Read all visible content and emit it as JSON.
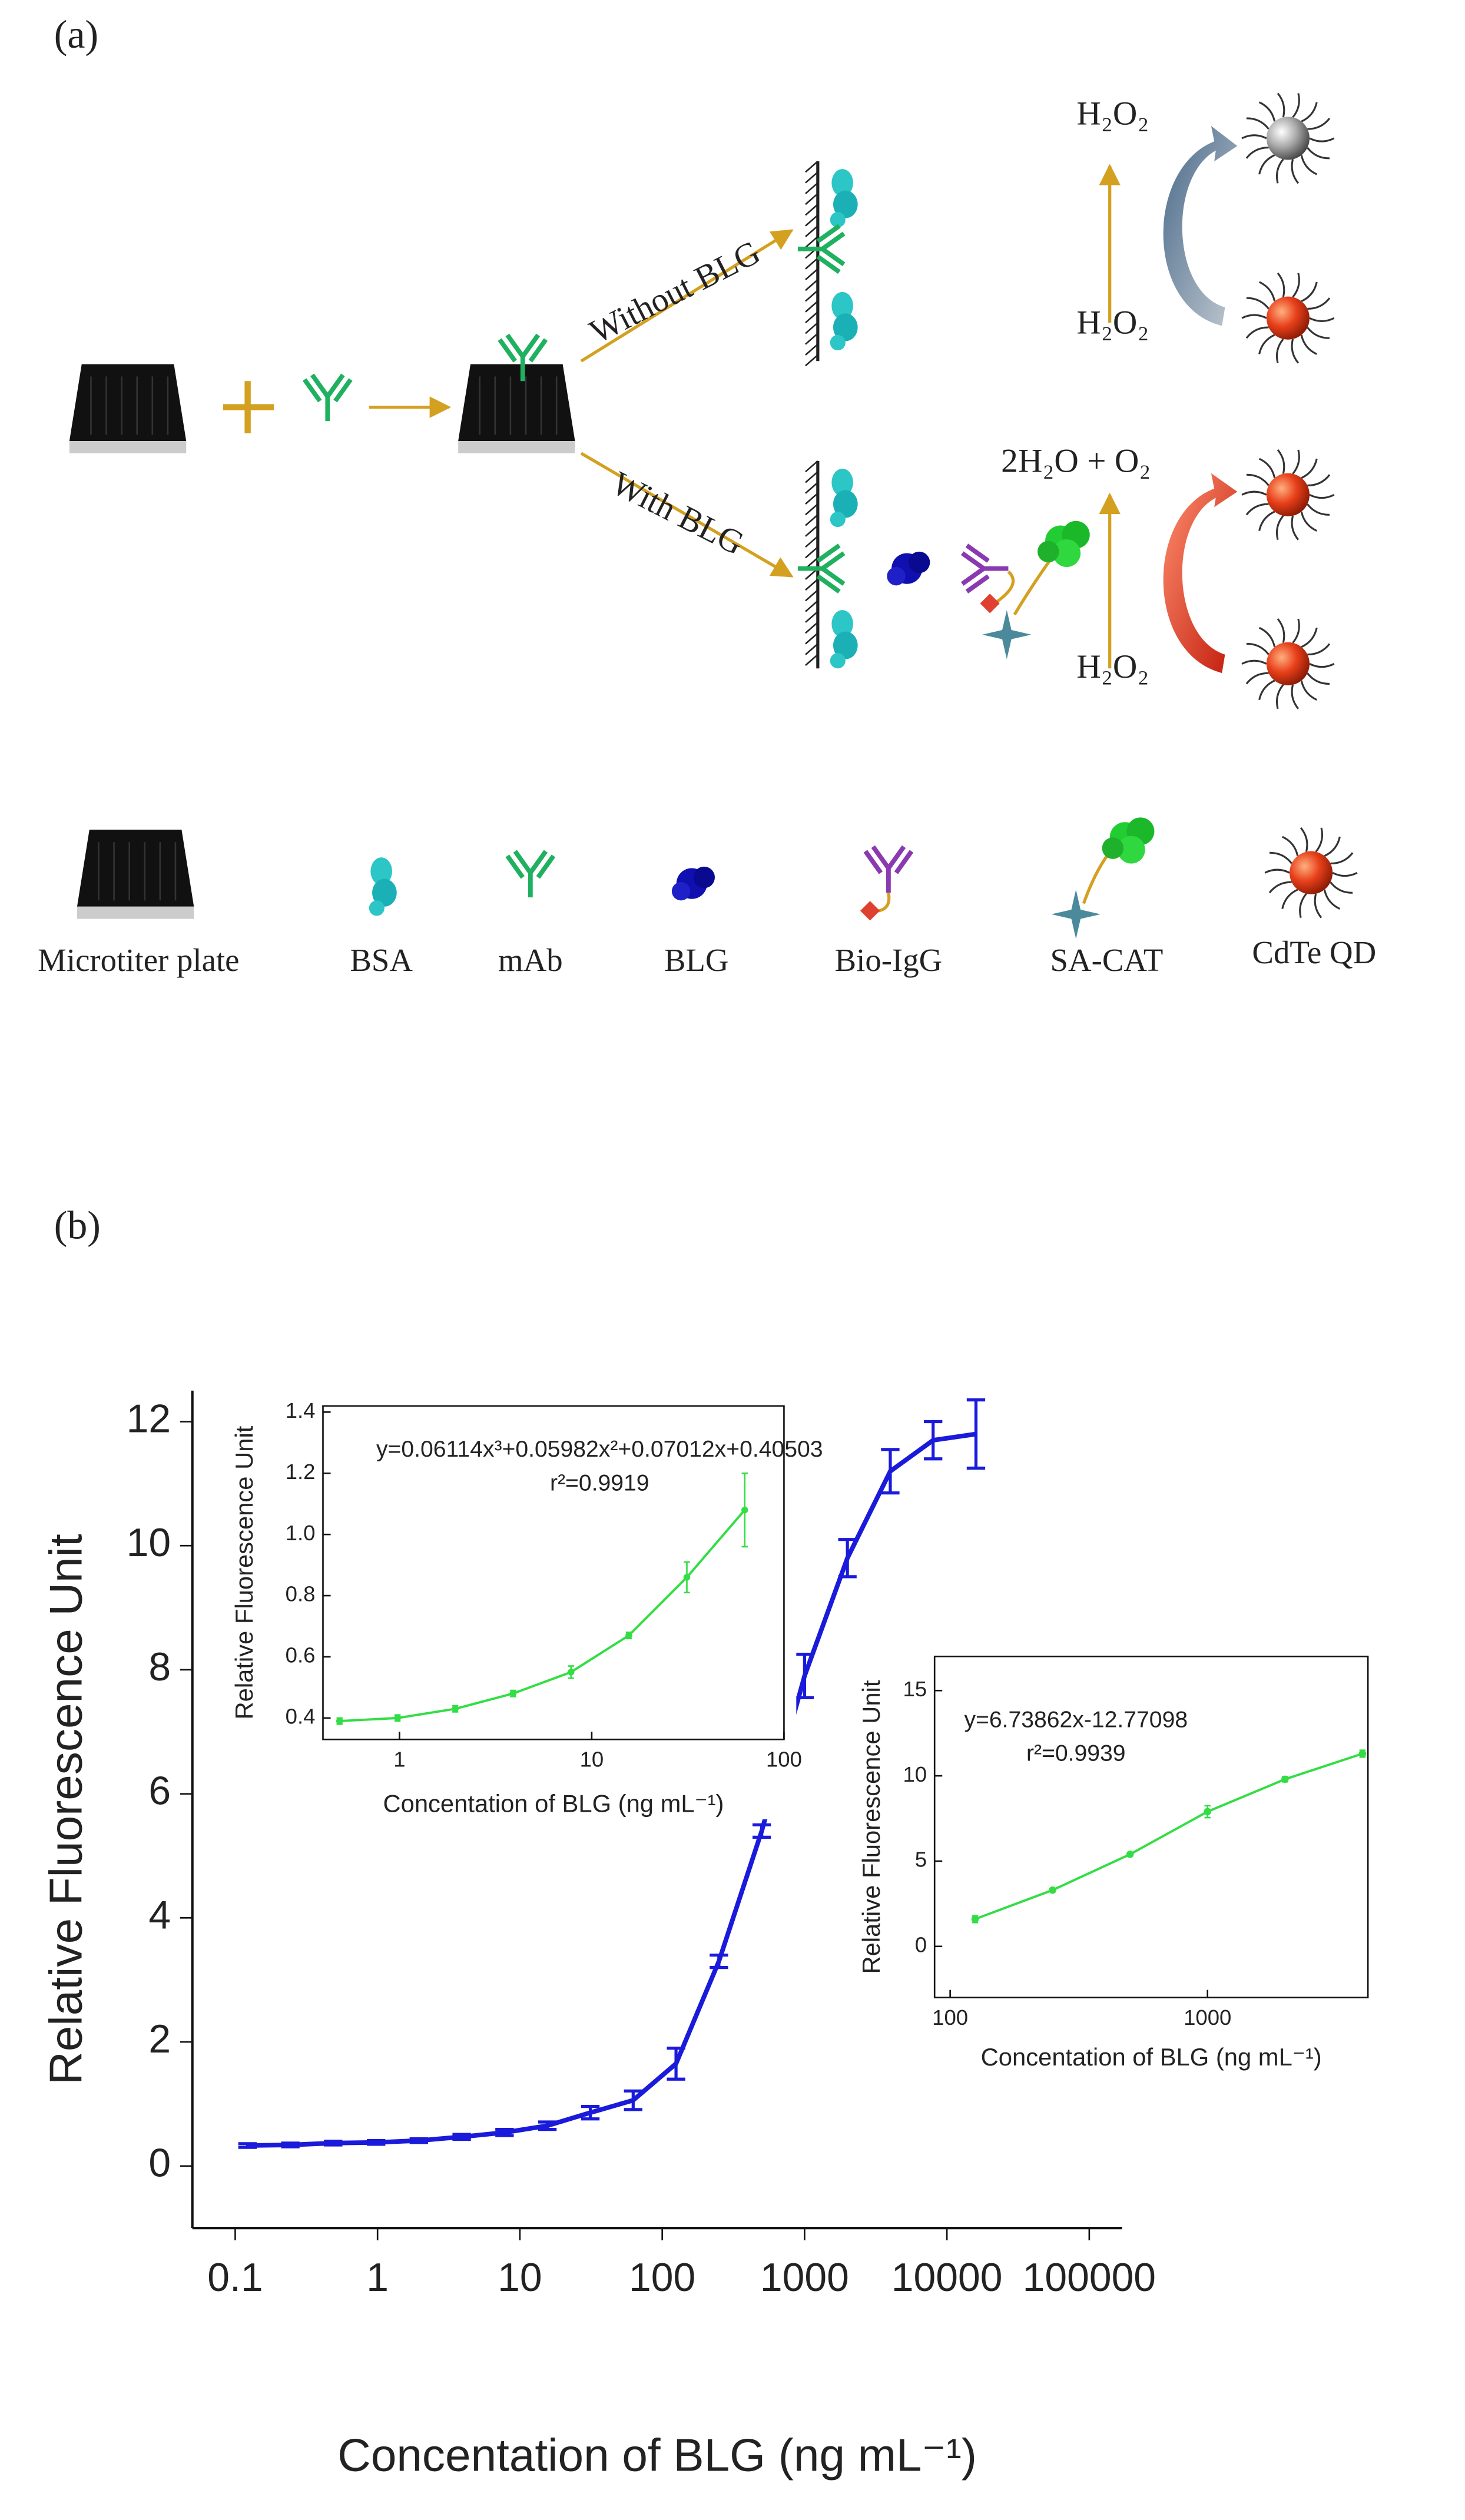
{
  "panel_labels": [
    "(a)",
    "(b)"
  ],
  "diagram": {
    "arrows": [
      "Without BLG",
      "With BLG"
    ],
    "reactions": [
      "H₂O₂",
      "H₂O₂",
      "2H₂O + O₂",
      "H₂O₂"
    ],
    "legend": [
      "Microtiter plate",
      "BSA",
      "mAb",
      "BLG",
      "Bio-IgG",
      "SA-CAT",
      "CdTe QD"
    ]
  },
  "chart_data": [
    {
      "type": "line",
      "x_label": "Concentation of BLG (ng mL⁻¹)",
      "y_label": "Relative Fluorescence Unit",
      "x": [
        0.122,
        0.244,
        0.488,
        0.977,
        1.95,
        3.9,
        7.8,
        15.6,
        31.25,
        62.5,
        125,
        250,
        500,
        1000,
        2000,
        4000,
        8000,
        16000
      ],
      "values": [
        0.33,
        0.34,
        0.37,
        0.38,
        0.41,
        0.47,
        0.54,
        0.65,
        0.86,
        1.06,
        1.65,
        3.3,
        5.4,
        7.9,
        9.8,
        11.2,
        11.7,
        11.8
      ],
      "errors": [
        0.03,
        0.03,
        0.03,
        0.03,
        0.03,
        0.04,
        0.05,
        0.06,
        0.1,
        0.15,
        0.25,
        0.1,
        0.1,
        0.35,
        0.3,
        0.35,
        0.3,
        0.55
      ],
      "color": "#1a1adb",
      "log_x": true,
      "xlim": [
        0.05,
        170000
      ],
      "ylim": [
        -1,
        12.5
      ],
      "xticks": [
        0.1,
        1,
        10,
        100,
        1000,
        10000,
        100000
      ],
      "yticks": [
        0,
        2,
        4,
        6,
        8,
        10,
        12
      ]
    },
    {
      "type": "line",
      "x_label": "Concentation of BLG (ng mL⁻¹)",
      "y_label": "Relative Fluorescence Unit",
      "annotations": [
        "y=0.06114x³+0.05982x²+0.07012x+0.40503",
        "r²=0.9919"
      ],
      "x": [
        0.488,
        0.977,
        1.95,
        3.9,
        7.8,
        15.6,
        31.25,
        62.5
      ],
      "values": [
        0.39,
        0.4,
        0.43,
        0.48,
        0.55,
        0.67,
        0.86,
        1.08
      ],
      "errors": [
        0.01,
        0.01,
        0.01,
        0.01,
        0.02,
        0.01,
        0.05,
        0.12
      ],
      "color": "#33dd44",
      "log_x": true,
      "xlim": [
        0.4,
        100
      ],
      "ylim": [
        0.33,
        1.42
      ],
      "xticks": [
        1,
        10,
        100
      ],
      "yticks": [
        0.4,
        0.6,
        0.8,
        {
          "value": 1,
          "label": "1.0"
        },
        1.2,
        1.4
      ]
    },
    {
      "type": "line",
      "x_label": "Concentation of BLG (ng mL⁻¹)",
      "y_label": "Relative Fluorescence Unit",
      "annotations": [
        "y=6.73862x-12.77098",
        "r²=0.9939"
      ],
      "x": [
        125,
        250,
        500,
        1000,
        2000,
        4000
      ],
      "values": [
        1.6,
        3.3,
        5.4,
        7.9,
        9.8,
        11.3
      ],
      "errors": [
        0.2,
        0.1,
        0.1,
        0.35,
        0.15,
        0.2
      ],
      "color": "#33dd44",
      "log_x": true,
      "xlim": [
        87,
        4200
      ],
      "ylim": [
        -3,
        17
      ],
      "xticks": [
        100,
        1000
      ],
      "yticks": [
        0,
        5,
        10,
        15
      ]
    }
  ]
}
